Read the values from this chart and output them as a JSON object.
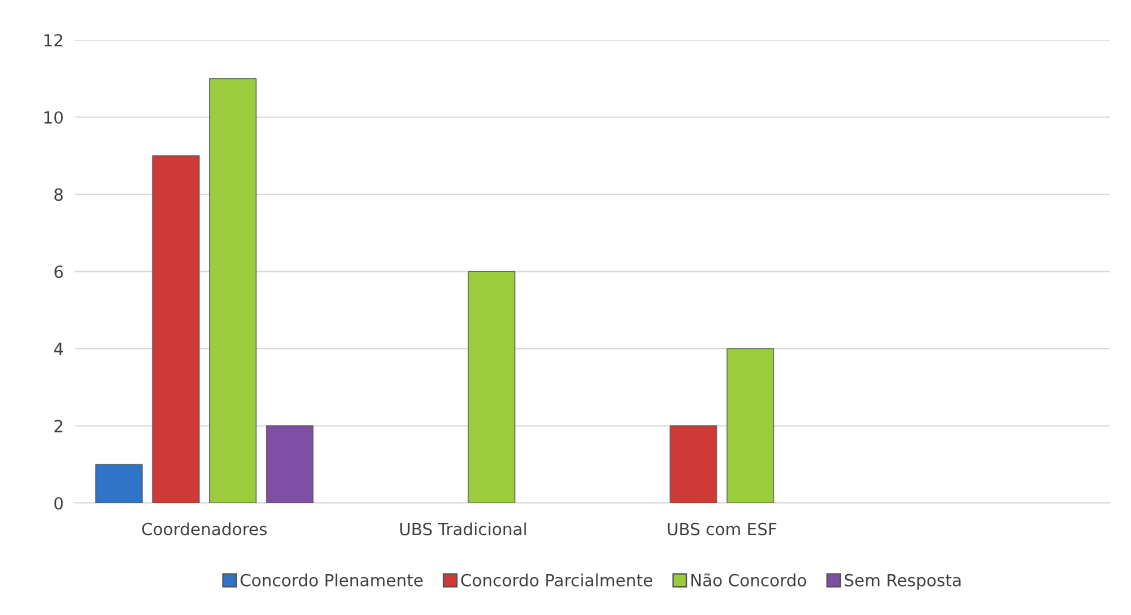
{
  "chart_data": {
    "type": "bar",
    "categories": [
      "Coordenadores",
      "UBS Tradicional",
      "UBS com ESF",
      null
    ],
    "series": [
      {
        "name": "Concordo Plenamente",
        "color": "#2e75c8",
        "values": [
          1,
          null,
          null,
          null
        ]
      },
      {
        "name": "Concordo Parcialmente",
        "color": "#d03a36",
        "values": [
          9,
          null,
          2,
          null
        ]
      },
      {
        "name": "Não Concordo",
        "color": "#9bcc3e",
        "values": [
          11,
          6,
          4,
          null
        ]
      },
      {
        "name": "Sem Resposta",
        "color": "#7f4fa6",
        "values": [
          2,
          null,
          null,
          null
        ]
      }
    ],
    "ylim": [
      0,
      12
    ],
    "yticks": [
      0,
      2,
      4,
      6,
      8,
      10,
      12
    ],
    "grid": "y",
    "legend": "bottom"
  }
}
